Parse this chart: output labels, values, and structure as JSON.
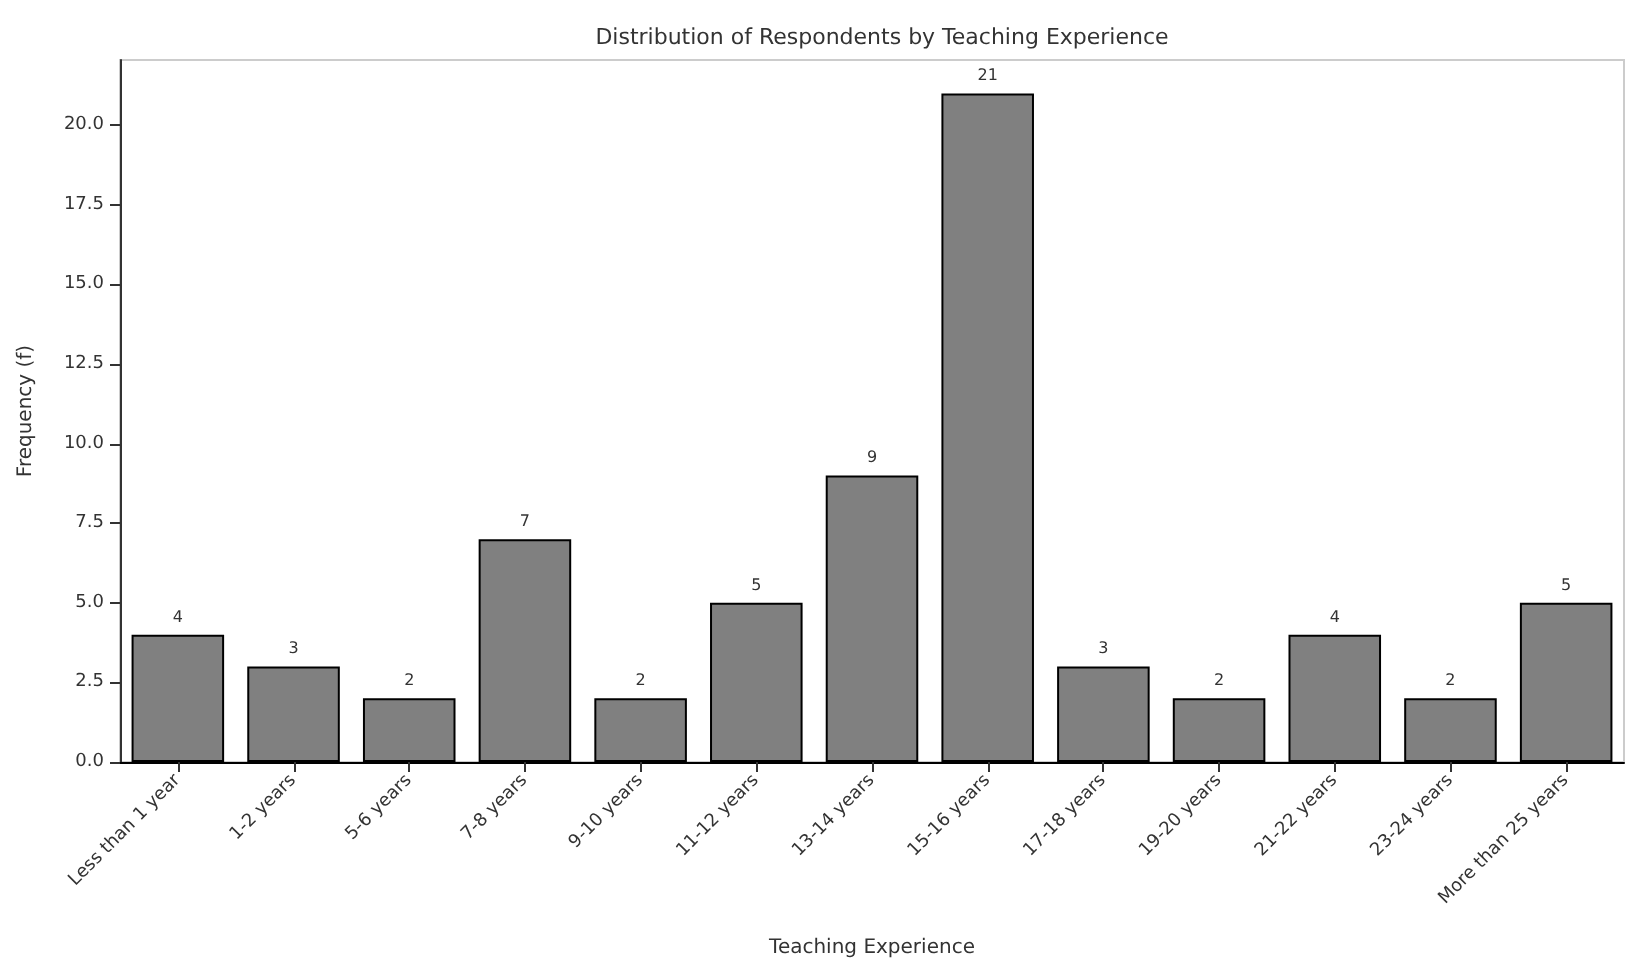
{
  "chart_data": {
    "type": "bar",
    "title": "Distribution of Respondents by Teaching Experience",
    "xlabel": "Teaching Experience",
    "ylabel": "Frequency (f)",
    "categories": [
      "Less than 1 year",
      "1-2 years",
      "5-6 years",
      "7-8 years",
      "9-10 years",
      "11-12 years",
      "13-14 years",
      "15-16 years",
      "17-18 years",
      "19-20 years",
      "21-22 years",
      "23-24 years",
      "More than 25 years"
    ],
    "values": [
      4,
      3,
      2,
      7,
      2,
      5,
      9,
      21,
      3,
      2,
      4,
      2,
      5
    ],
    "color": "#808080",
    "data_labels": true,
    "grid": false,
    "ylim": [
      0,
      22.05
    ],
    "yticks": [
      {
        "value": 0,
        "label": "0.0"
      },
      {
        "value": 2.5,
        "label": "2.5"
      },
      {
        "value": 5,
        "label": "5.0"
      },
      {
        "value": 7.5,
        "label": "7.5"
      },
      {
        "value": 10,
        "label": "10.0"
      },
      {
        "value": 12.5,
        "label": "12.5"
      },
      {
        "value": 15,
        "label": "15.0"
      },
      {
        "value": 17.5,
        "label": "17.5"
      },
      {
        "value": 20,
        "label": "20.0"
      }
    ]
  }
}
